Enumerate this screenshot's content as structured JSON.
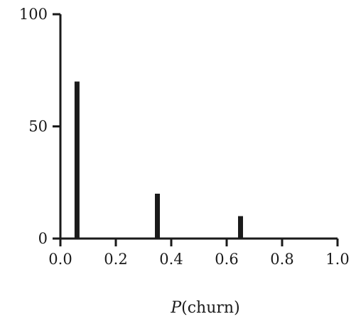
{
  "chart_data": {
    "type": "bar",
    "x": [
      0.06,
      0.35,
      0.65
    ],
    "values": [
      70,
      20,
      10
    ],
    "xlabel_var": "P",
    "xlabel_rest": "(churn)",
    "ylabel": "",
    "xlim": [
      0,
      1
    ],
    "ylim": [
      0,
      100
    ],
    "x_ticks": [
      0.0,
      0.2,
      0.4,
      0.6,
      0.8,
      1.0
    ],
    "x_tick_labels": [
      "0.0",
      "0.2",
      "0.4",
      "0.6",
      "0.8",
      "1.0"
    ],
    "y_ticks": [
      0,
      50,
      100
    ],
    "y_tick_labels": [
      "0",
      "50",
      "100"
    ],
    "grid": false,
    "legend": "none",
    "bar_color": "#1a1a1a",
    "axis_color": "#1a1a1a"
  }
}
